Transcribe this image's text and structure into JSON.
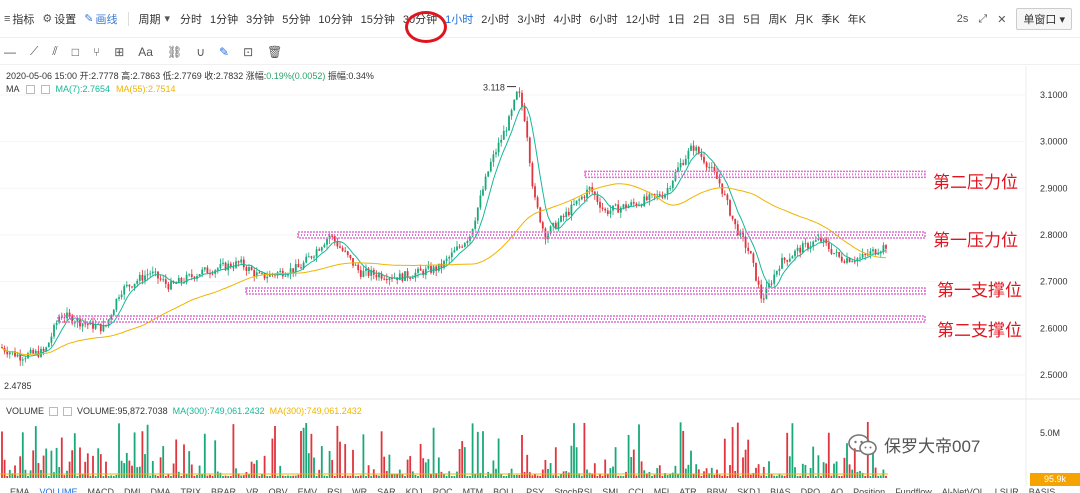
{
  "toolbar": {
    "indicators_label": "指标",
    "settings_label": "设置",
    "draw_label": "画线",
    "period_label": "周期",
    "periods": [
      "分时",
      "1分钟",
      "3分钟",
      "5分钟",
      "10分钟",
      "15分钟",
      "30分钟",
      "1小时",
      "2小时",
      "3小时",
      "4小时",
      "6小时",
      "12小时",
      "1日",
      "2日",
      "3日",
      "5日",
      "周K",
      "月K",
      "季K",
      "年K"
    ],
    "active_period": "1小时",
    "refresh_label": "2s",
    "window_label": "单窗口"
  },
  "info": {
    "date": "2020-05-06 15:00",
    "open": "开:2.7778",
    "high": "高:2.7863",
    "low": "低:2.7769",
    "close": "收:2.7832",
    "change_label": "涨幅:",
    "change_value": "0.19%(0.0052)",
    "amplitude": "振幅:0.34%"
  },
  "ma": {
    "label": "MA",
    "ma7": "MA(7):2.7654",
    "ma55": "MA(55):2.7514",
    "ma7_color": "#17b897",
    "ma55_color": "#f0b400"
  },
  "price_axis": [
    "3.1000",
    "3.0000",
    "2.9000",
    "2.8000",
    "2.7000",
    "2.6000",
    "2.5000"
  ],
  "price_high_label": "3.118",
  "price_low_label": "2.4785",
  "annotations": {
    "r2": "第二压力位",
    "r1": "第一压力位",
    "s1": "第一支撑位",
    "s2": "第二支撑位"
  },
  "levels": {
    "r2": 2.93,
    "r1": 2.8,
    "s1": 2.68,
    "s2": 2.62
  },
  "volume": {
    "label": "VOLUME",
    "value": "VOLUME:95,872.7038",
    "ma300a": "MA(300):749,061.2432",
    "ma300b": "MA(300):749,061.2432",
    "axis_top": "5.0M",
    "current_badge": "95.9k"
  },
  "watermark": "保罗大帝007",
  "indicators": [
    "EMA",
    "VOLUME",
    "MACD",
    "DMI",
    "DMA",
    "TRIX",
    "BRAR",
    "VR",
    "OBV",
    "EMV",
    "RSI",
    "WR",
    "SAR",
    "KDJ",
    "ROC",
    "MTM",
    "BOLL",
    "PSY",
    "StochRSI",
    "SMI",
    "CCI",
    "MFI",
    "ATR",
    "BBW",
    "SKDJ",
    "BIAS",
    "DPO",
    "AO",
    "Position",
    "Fundflow",
    "Al-NetVOL",
    "LSUR",
    "BASIS"
  ],
  "active_indicator": "VOLUME",
  "colors": {
    "up": "#1aa87a",
    "down": "#e0343e",
    "accent": "#1f6fe0",
    "level_band": "#e070d0",
    "annotation": "#e0141e"
  },
  "chart_data": {
    "type": "candlestick",
    "ylim": [
      2.46,
      3.14
    ],
    "key_points": [
      {
        "label": "start",
        "price": 2.55
      },
      {
        "label": "low",
        "price": 2.4785
      },
      {
        "label": "high",
        "price": 3.118
      },
      {
        "label": "last",
        "price": 2.7832
      }
    ]
  }
}
